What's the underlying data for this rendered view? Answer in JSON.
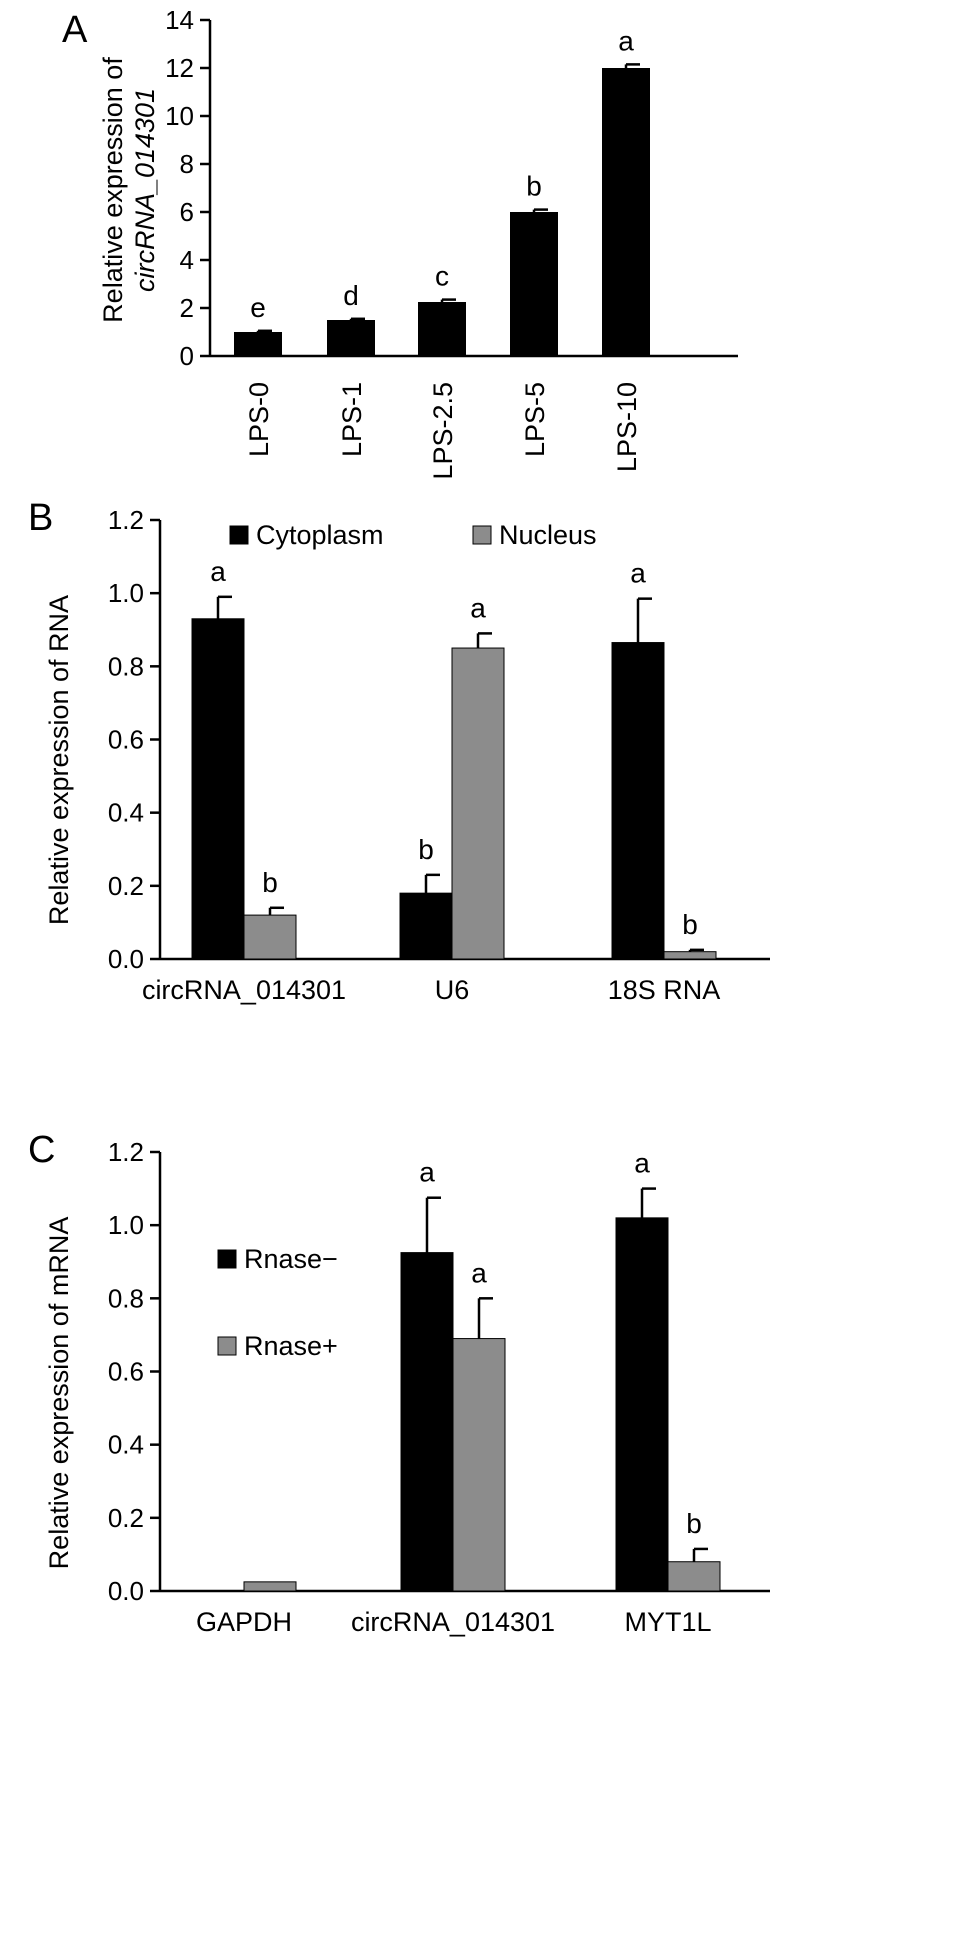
{
  "panels": [
    {
      "letter": "A",
      "ylabel_line1": "Relative expression of",
      "ylabel_line2": "circRNA_014301",
      "ylabel_line2_italic": true
    },
    {
      "letter": "B",
      "ylabel": "Relative expression of RNA"
    },
    {
      "letter": "C",
      "ylabel": "Relative expression of mRNA"
    }
  ],
  "chart_data": [
    {
      "type": "bar",
      "panel": "A",
      "categories": [
        "LPS-0",
        "LPS-1",
        "LPS-2.5",
        "LPS-5",
        "LPS-10"
      ],
      "values": [
        1.0,
        1.5,
        2.25,
        6.0,
        12.0
      ],
      "errors": [
        0.05,
        0.05,
        0.1,
        0.1,
        0.15
      ],
      "significance": [
        "e",
        "d",
        "c",
        "b",
        "a"
      ],
      "ylabel": "Relative expression of circRNA_014301",
      "ylim": [
        0,
        14
      ],
      "yticks": [
        "0",
        "2",
        "4",
        "6",
        "8",
        "10",
        "12",
        "14"
      ],
      "bar_color": "#000000",
      "grid": false
    },
    {
      "type": "bar",
      "panel": "B",
      "categories": [
        "circRNA_014301",
        "U6",
        "18S RNA"
      ],
      "series": [
        {
          "name": "Cytoplasm",
          "color": "#000000",
          "values": [
            0.93,
            0.18,
            0.865
          ],
          "errors": [
            0.06,
            0.05,
            0.12
          ],
          "significance": [
            "a",
            "b",
            "a"
          ]
        },
        {
          "name": "Nucleus",
          "color": "#8c8c8c",
          "values": [
            0.12,
            0.85,
            0.02
          ],
          "errors": [
            0.02,
            0.04,
            0.005
          ],
          "significance": [
            "b",
            "a",
            "b"
          ]
        }
      ],
      "ylabel": "Relative expression of RNA",
      "ylim": [
        0,
        1.2
      ],
      "yticks": [
        "0.0",
        "0.2",
        "0.4",
        "0.6",
        "0.8",
        "1.0",
        "1.2"
      ],
      "legend": "top",
      "grid": false
    },
    {
      "type": "bar",
      "panel": "C",
      "categories": [
        "GAPDH",
        "circRNA_014301",
        "MYT1L"
      ],
      "series": [
        {
          "name": "Rnase−",
          "color": "#000000",
          "values": [
            0,
            0.925,
            1.02
          ],
          "errors": [
            0,
            0.15,
            0.08
          ],
          "significance": [
            "",
            "a",
            "a"
          ]
        },
        {
          "name": "Rnase+",
          "color": "#8c8c8c",
          "values": [
            0.025,
            0.69,
            0.08
          ],
          "errors": [
            0,
            0.11,
            0.035
          ],
          "significance": [
            "",
            "a",
            "b"
          ]
        }
      ],
      "ylabel": "Relative expression of mRNA",
      "ylim": [
        0,
        1.2
      ],
      "yticks": [
        "0.0",
        "0.2",
        "0.4",
        "0.6",
        "0.8",
        "1.0",
        "1.2"
      ],
      "legend": "left, stacked",
      "grid": false
    }
  ]
}
